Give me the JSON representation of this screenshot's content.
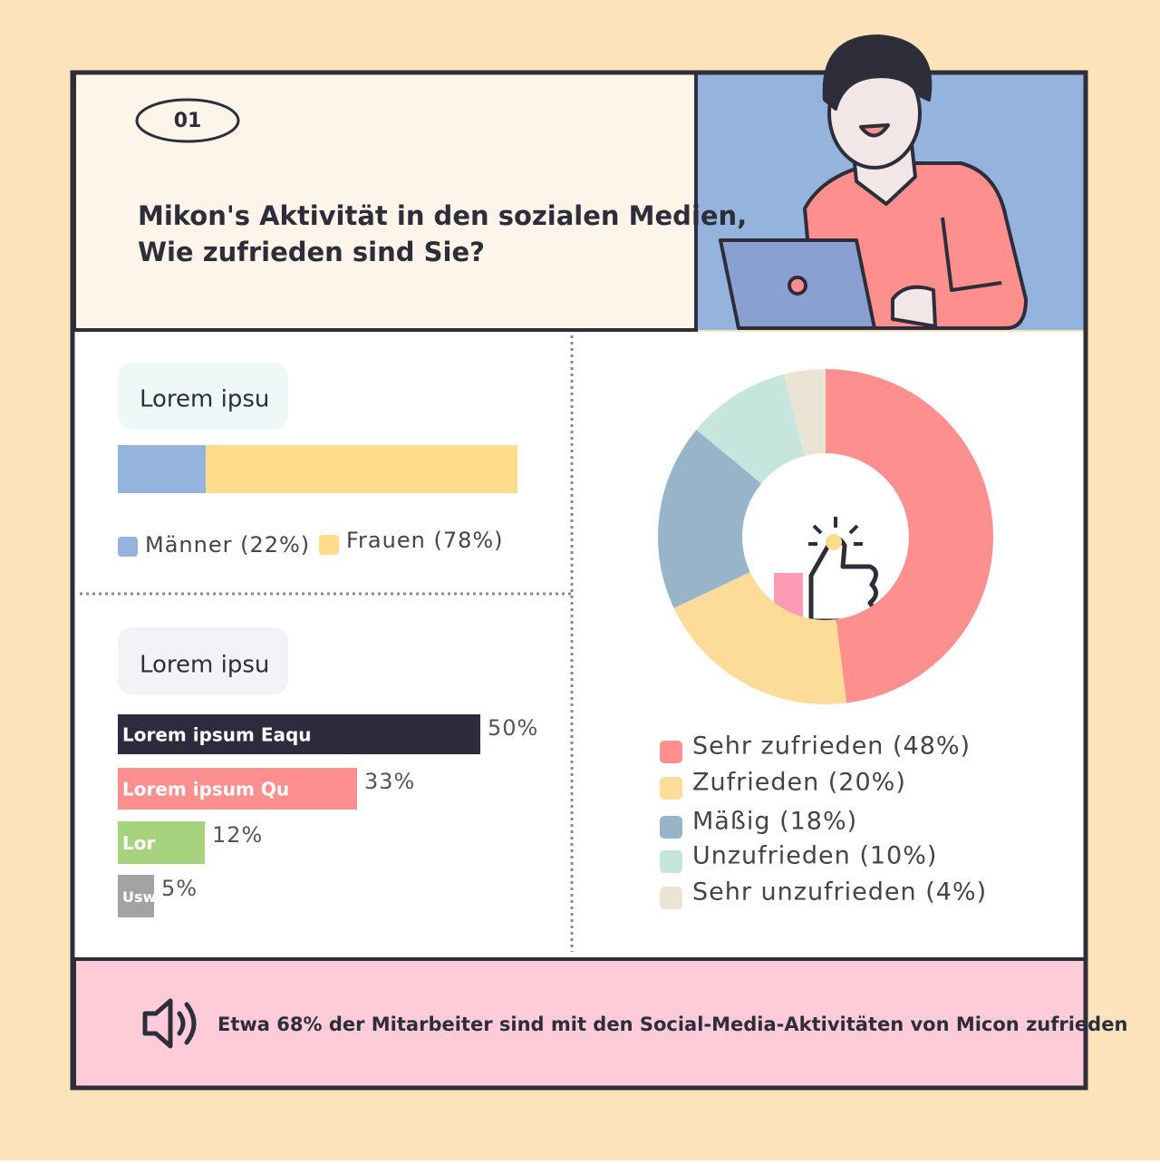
{
  "header": {
    "badge": "01",
    "title": [
      "Mikon's Aktivität in den sozialen Medien,",
      "Wie zufrieden sind Sie?"
    ]
  },
  "chart_data": [
    {
      "type": "stacked-bar",
      "title": "Lorem ipsu",
      "series": [
        {
          "name": "Männer (22%)",
          "color": "#94b4de",
          "values": [
            22
          ]
        },
        {
          "name": "Frauen (78%)",
          "color": "#fddc8c",
          "values": [
            78
          ]
        }
      ]
    },
    {
      "type": "bar",
      "title": "Lorem ipsu",
      "categories": [
        "Lorem ipsum Eaqu",
        "Lorem ipsum Qu",
        "Lor",
        "Usw"
      ],
      "values": [
        50,
        33,
        12,
        5
      ],
      "value_labels": [
        "50%",
        "33%",
        "12%",
        "5%"
      ],
      "colors": [
        "#2e2b3f",
        "#fd8f8f",
        "#a8d37e",
        "#a3a3a3"
      ]
    },
    {
      "type": "donut",
      "categories": [
        "Sehr zufrieden (48%)",
        "Zufrieden (20%)",
        "Mäßig (18%)",
        "Unzufrieden (10%)",
        "Sehr unzufrieden (4%)"
      ],
      "values": [
        48,
        20,
        18,
        10,
        4
      ],
      "colors": [
        "#fd8f8f",
        "#fddc9a",
        "#97b4c9",
        "#c6e6dd",
        "#ebe3d3"
      ]
    }
  ],
  "footer": {
    "text": "Etwa 68% der Mitarbeiter sind mit den Social-Media-Aktivitäten von Micon zufrieden"
  }
}
